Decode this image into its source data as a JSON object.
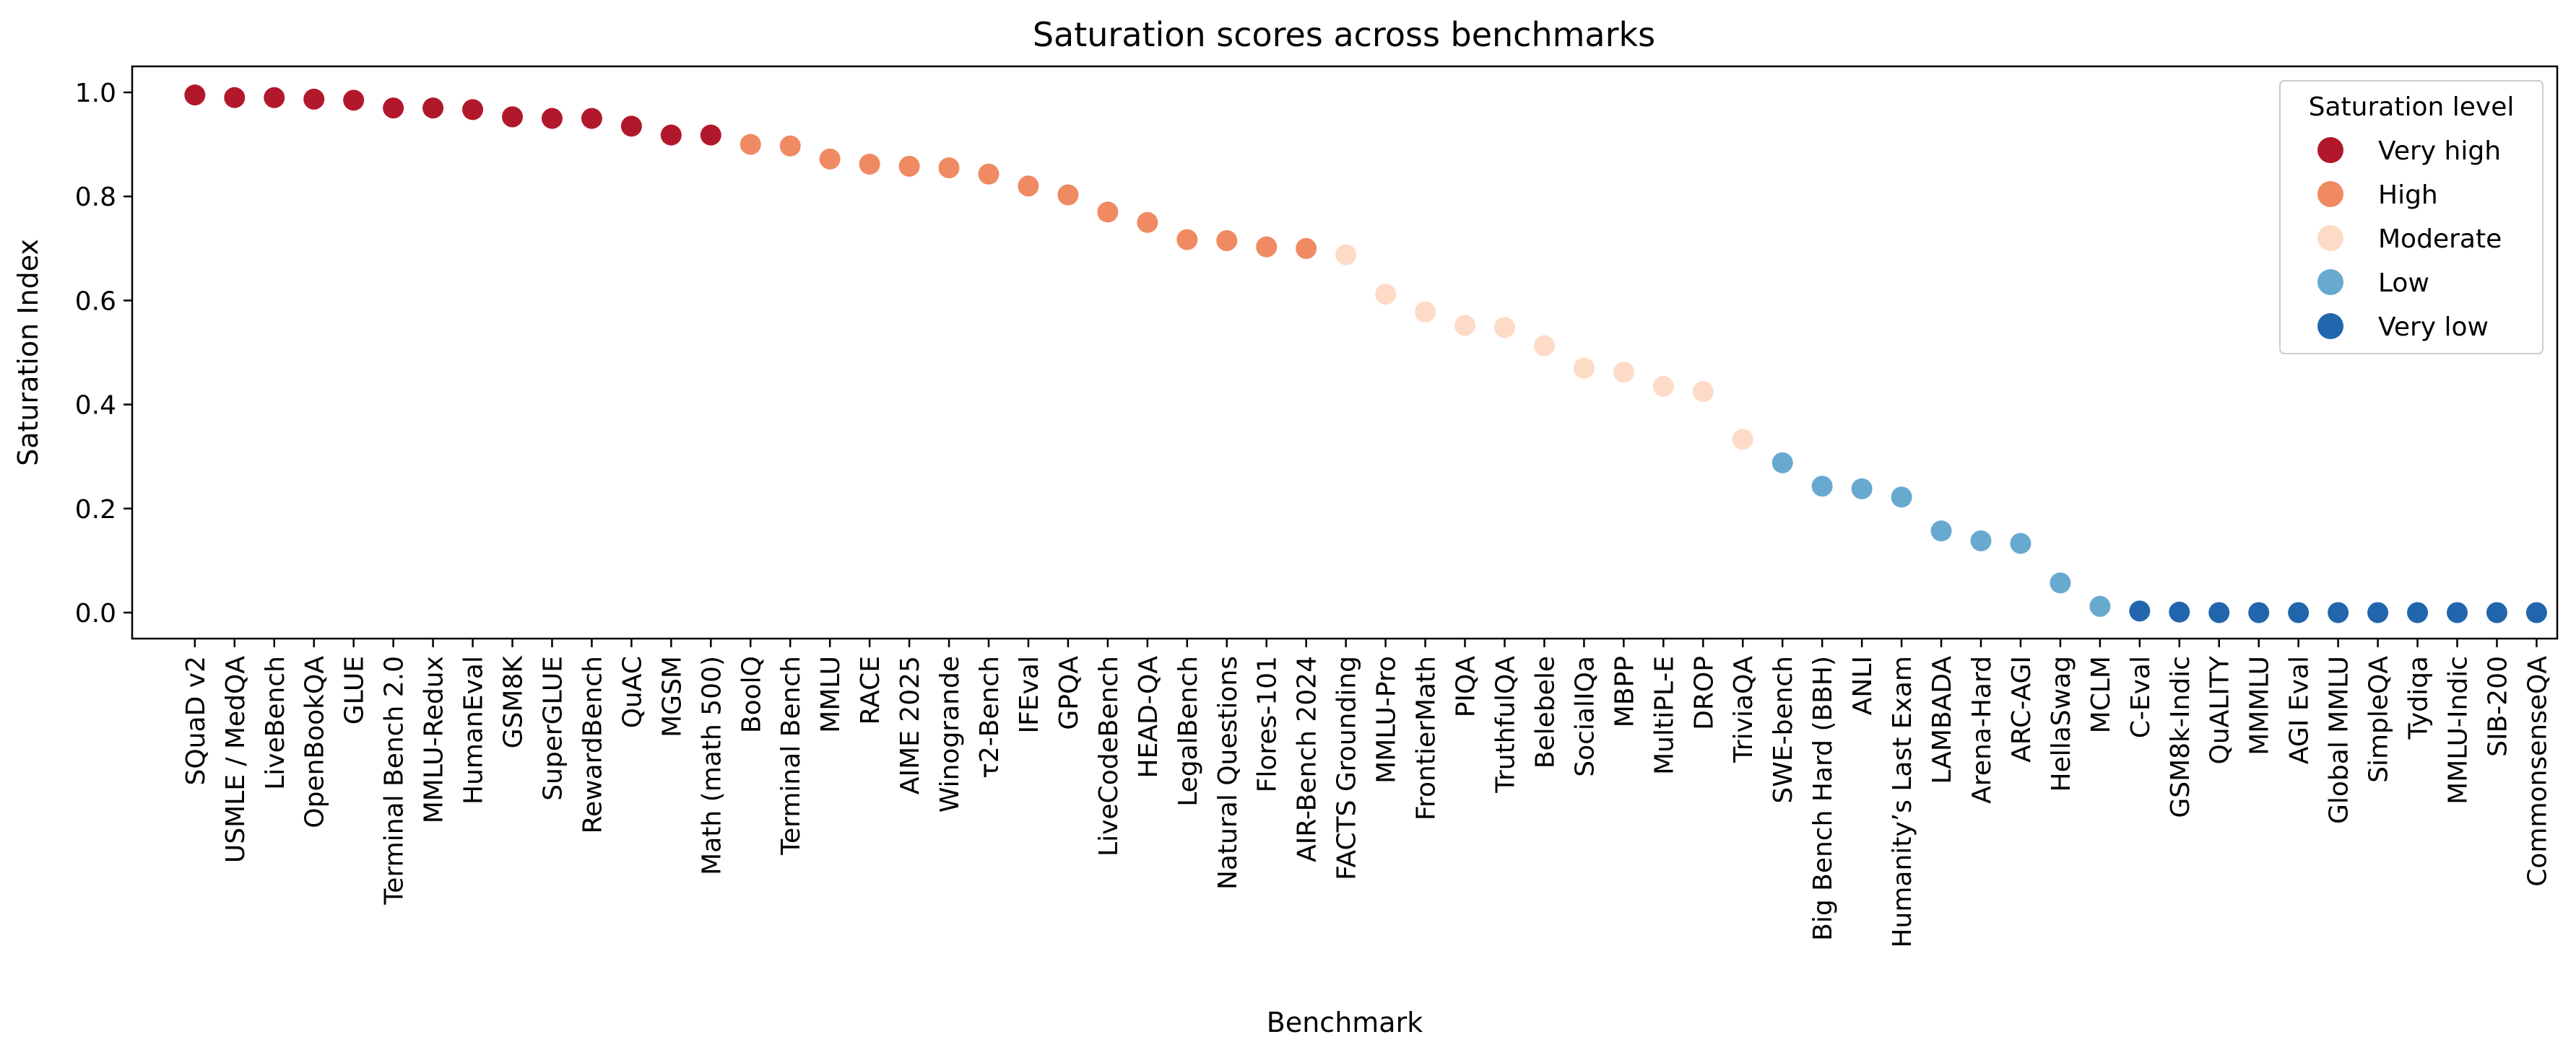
{
  "chart_data": {
    "type": "scatter",
    "title": "Saturation scores across benchmarks",
    "xlabel": "Benchmark",
    "ylabel": "Saturation Index",
    "ylim": [
      -0.05,
      1.05
    ],
    "yticks": [
      0.0,
      0.2,
      0.4,
      0.6,
      0.8,
      1.0
    ],
    "ytick_labels": [
      "0.0",
      "0.2",
      "0.4",
      "0.6",
      "0.8",
      "1.0"
    ],
    "grid": false,
    "legend": {
      "title": "Saturation level",
      "placement": "top-right",
      "entries": [
        {
          "label": "Very high",
          "color": "#b2182b"
        },
        {
          "label": "High",
          "color": "#ef8a62"
        },
        {
          "label": "Moderate",
          "color": "#fddbc7"
        },
        {
          "label": "Low",
          "color": "#67a9cf"
        },
        {
          "label": "Very low",
          "color": "#2166ac"
        }
      ]
    },
    "points": [
      {
        "name": "SQuaD v2",
        "value": 0.995,
        "level": "Very high"
      },
      {
        "name": "USMLE / MedQA",
        "value": 0.99,
        "level": "Very high"
      },
      {
        "name": "LiveBench",
        "value": 0.99,
        "level": "Very high"
      },
      {
        "name": "OpenBookQA",
        "value": 0.987,
        "level": "Very high"
      },
      {
        "name": "GLUE",
        "value": 0.985,
        "level": "Very high"
      },
      {
        "name": "Terminal Bench 2.0",
        "value": 0.97,
        "level": "Very high"
      },
      {
        "name": "MMLU-Redux",
        "value": 0.97,
        "level": "Very high"
      },
      {
        "name": "HumanEval",
        "value": 0.967,
        "level": "Very high"
      },
      {
        "name": "GSM8K",
        "value": 0.953,
        "level": "Very high"
      },
      {
        "name": "SuperGLUE",
        "value": 0.95,
        "level": "Very high"
      },
      {
        "name": "RewardBench",
        "value": 0.95,
        "level": "Very high"
      },
      {
        "name": "QuAC",
        "value": 0.935,
        "level": "Very high"
      },
      {
        "name": "MGSM",
        "value": 0.918,
        "level": "Very high"
      },
      {
        "name": "Math (math 500)",
        "value": 0.918,
        "level": "Very high"
      },
      {
        "name": "BoolQ",
        "value": 0.9,
        "level": "High"
      },
      {
        "name": "Terminal Bench",
        "value": 0.897,
        "level": "High"
      },
      {
        "name": "MMLU",
        "value": 0.872,
        "level": "High"
      },
      {
        "name": "RACE",
        "value": 0.862,
        "level": "High"
      },
      {
        "name": "AIME 2025",
        "value": 0.858,
        "level": "High"
      },
      {
        "name": "Winogrande",
        "value": 0.855,
        "level": "High"
      },
      {
        "name": "τ2-Bench",
        "value": 0.843,
        "level": "High"
      },
      {
        "name": "IFEval",
        "value": 0.82,
        "level": "High"
      },
      {
        "name": "GPQA",
        "value": 0.803,
        "level": "High"
      },
      {
        "name": "LiveCodeBench",
        "value": 0.77,
        "level": "High"
      },
      {
        "name": "HEAD-QA",
        "value": 0.75,
        "level": "High"
      },
      {
        "name": "LegalBench",
        "value": 0.717,
        "level": "High"
      },
      {
        "name": "Natural Questions",
        "value": 0.715,
        "level": "High"
      },
      {
        "name": "Flores-101",
        "value": 0.703,
        "level": "High"
      },
      {
        "name": "AIR-Bench 2024",
        "value": 0.7,
        "level": "High"
      },
      {
        "name": "FACTS Grounding",
        "value": 0.688,
        "level": "Moderate"
      },
      {
        "name": "MMLU-Pro",
        "value": 0.612,
        "level": "Moderate"
      },
      {
        "name": "FrontierMath",
        "value": 0.578,
        "level": "Moderate"
      },
      {
        "name": "PIQA",
        "value": 0.552,
        "level": "Moderate"
      },
      {
        "name": "TruthfulQA",
        "value": 0.548,
        "level": "Moderate"
      },
      {
        "name": "Belebele",
        "value": 0.513,
        "level": "Moderate"
      },
      {
        "name": "SocialIQa",
        "value": 0.47,
        "level": "Moderate"
      },
      {
        "name": "MBPP",
        "value": 0.462,
        "level": "Moderate"
      },
      {
        "name": "MultiPL-E",
        "value": 0.435,
        "level": "Moderate"
      },
      {
        "name": "DROP",
        "value": 0.425,
        "level": "Moderate"
      },
      {
        "name": "TriviaQA",
        "value": 0.333,
        "level": "Moderate"
      },
      {
        "name": "SWE-bench",
        "value": 0.288,
        "level": "Low"
      },
      {
        "name": "Big Bench Hard (BBH)",
        "value": 0.243,
        "level": "Low"
      },
      {
        "name": "ANLI",
        "value": 0.238,
        "level": "Low"
      },
      {
        "name": "Humanity’s Last Exam",
        "value": 0.222,
        "level": "Low"
      },
      {
        "name": "LAMBADA",
        "value": 0.157,
        "level": "Low"
      },
      {
        "name": "Arena-Hard",
        "value": 0.138,
        "level": "Low"
      },
      {
        "name": "ARC-AGI",
        "value": 0.133,
        "level": "Low"
      },
      {
        "name": "HellaSwag",
        "value": 0.057,
        "level": "Low"
      },
      {
        "name": "MCLM",
        "value": 0.012,
        "level": "Low"
      },
      {
        "name": "C-Eval",
        "value": 0.003,
        "level": "Very low"
      },
      {
        "name": "GSM8k-Indic",
        "value": 0.001,
        "level": "Very low"
      },
      {
        "name": "QuALITY",
        "value": 0.0,
        "level": "Very low"
      },
      {
        "name": "MMMLU",
        "value": 0.0,
        "level": "Very low"
      },
      {
        "name": "AGI Eval",
        "value": 0.0,
        "level": "Very low"
      },
      {
        "name": "Global MMLU",
        "value": 0.0,
        "level": "Very low"
      },
      {
        "name": "SimpleQA",
        "value": 0.0,
        "level": "Very low"
      },
      {
        "name": "Tydiqa",
        "value": 0.0,
        "level": "Very low"
      },
      {
        "name": "MMLU-Indic",
        "value": 0.0,
        "level": "Very low"
      },
      {
        "name": "SIB-200",
        "value": 0.0,
        "level": "Very low"
      },
      {
        "name": "CommonsenseQA",
        "value": 0.0,
        "level": "Very low"
      }
    ]
  }
}
